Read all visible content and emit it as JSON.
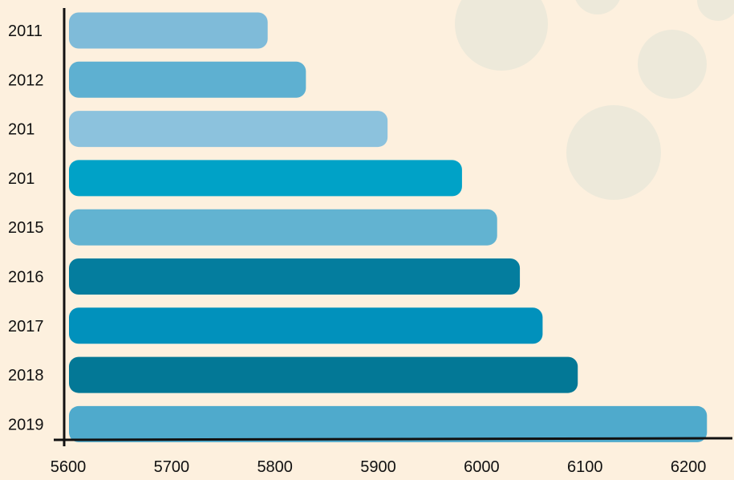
{
  "chart_data": {
    "type": "bar",
    "orientation": "horizontal",
    "categories": [
      "2011",
      "2012",
      "201",
      "201",
      "2015",
      "2016",
      "2017",
      "2018",
      "2019"
    ],
    "values": [
      5793,
      5830,
      5909,
      5981,
      6015,
      6037,
      6059,
      6093,
      6218
    ],
    "xticks": [
      5600,
      5700,
      5800,
      5900,
      6000,
      6100,
      6200
    ],
    "xlim": [
      5600,
      6260
    ],
    "title": "",
    "xlabel": "",
    "ylabel": "",
    "grid": false,
    "legend": "none",
    "bar_colors": [
      "#7fbbd9",
      "#5eb0d1",
      "#8cc2dd",
      "#00a2c7",
      "#62b3d1",
      "#047d9e",
      "#0191bc",
      "#037896",
      "#4faacc"
    ],
    "background_color": "#fdf0de",
    "decor_circle_color": "#ede9da"
  }
}
